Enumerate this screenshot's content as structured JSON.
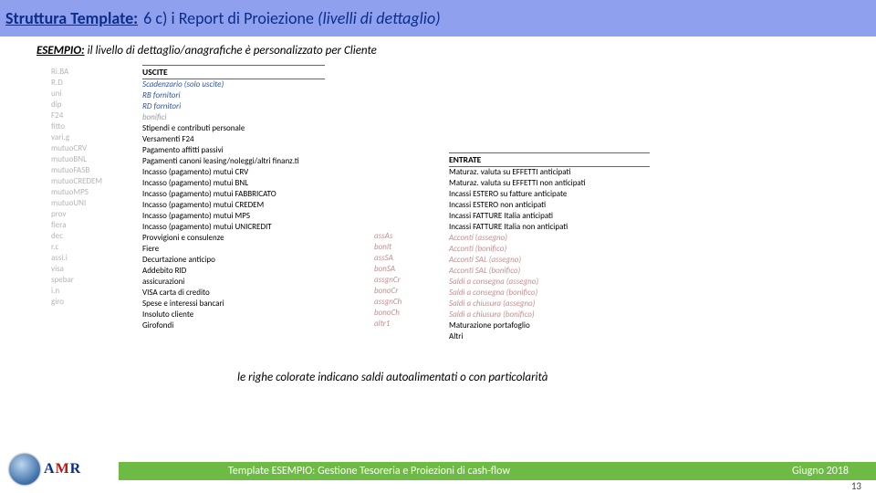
{
  "header": {
    "left": "Struttura Template:",
    "right_plain": " 6 c) i Report di Proiezione ",
    "right_italic": "(livelli di dettaglio)"
  },
  "subtitle": {
    "label": "ESEMPIO:",
    "text": " il livello di dettaglio/anagrafiche è personalizzato per Cliente"
  },
  "codes1": [
    "",
    "",
    "Ri.BA",
    "R.D",
    "uni",
    "dip",
    "F24",
    "fitto",
    "vari.g",
    "mutuoCRV",
    "mutuoBNL",
    "mutuoFASB",
    "mutuoCREDEM",
    "mutuoMPS",
    "mutuoUNI",
    "prov",
    "fiera",
    "dec",
    "r.c",
    "assi.i",
    "visa",
    "spebar",
    "i.n",
    "giro"
  ],
  "uscite": {
    "head": "USCITE",
    "rows": [
      {
        "t": "Scadenzario (solo uscite)",
        "c": "blue"
      },
      {
        "t": "RB fornitori",
        "c": "blue"
      },
      {
        "t": "RD fornitori",
        "c": "blue"
      },
      {
        "t": "bonifici",
        "c": "grey"
      },
      {
        "t": "Stipendi e contributi personale"
      },
      {
        "t": "Versamenti F24"
      },
      {
        "t": "Pagamento affitti passivi"
      },
      {
        "t": "Pagamenti canoni leasing/noleggi/altri finanz.ti"
      },
      {
        "t": "Incasso (pagamento) mutui CRV"
      },
      {
        "t": "Incasso (pagamento) mutui BNL"
      },
      {
        "t": "Incasso (pagamento) mutui FABBRICATO"
      },
      {
        "t": "Incasso (pagamento) mutui CREDEM"
      },
      {
        "t": "Incasso (pagamento) mutui MPS"
      },
      {
        "t": "Incasso (pagamento) mutui UNICREDIT"
      },
      {
        "t": "Provvigioni e consulenze"
      },
      {
        "t": "Fiere"
      },
      {
        "t": "Decurtazione anticipo"
      },
      {
        "t": "Addebito RID"
      },
      {
        "t": "assicurazioni"
      },
      {
        "t": "VISA carta di credito"
      },
      {
        "t": "Spese e interessi bancari"
      },
      {
        "t": "Insoluto cliente"
      },
      {
        "t": "Girofondi"
      }
    ]
  },
  "codes2": [
    "assAs",
    "bonIt",
    "assSA",
    "bonSA",
    "assgnCr",
    "bonoCr",
    "assgnCh",
    "bonoCh",
    "",
    "",
    "altr1"
  ],
  "entrate": {
    "head": "ENTRATE",
    "rows": [
      {
        "t": "Maturaz. valuta su EFFETTI anticipati"
      },
      {
        "t": "Maturaz. valuta su EFFETTI non anticipati"
      },
      {
        "t": "Incassi ESTERO su fatture anticipate"
      },
      {
        "t": "Incassi ESTERO non anticipati"
      },
      {
        "t": "Incassi FATTURE Italia anticipati"
      },
      {
        "t": "Incassi FATTURE Italia non anticipati"
      },
      {
        "t": "Acconti (assegno)",
        "c": "pink"
      },
      {
        "t": "Acconti (bonifico)",
        "c": "pink"
      },
      {
        "t": "Acconti SAL (assegno)",
        "c": "pink"
      },
      {
        "t": "Acconti SAL (bonifico)",
        "c": "pink"
      },
      {
        "t": "Saldi a consegna (assegno)",
        "c": "pink"
      },
      {
        "t": "Saldi a consegna (bonifico)",
        "c": "pink"
      },
      {
        "t": "Saldi a chiusura (assegno)",
        "c": "pink"
      },
      {
        "t": "Saldi a chiusura (bonifico)",
        "c": "pink"
      },
      {
        "t": "Maturazione portafoglio"
      },
      {
        "t": "Altri"
      }
    ]
  },
  "note": "le righe colorate indicano saldi autoalimentati o con particolarità",
  "footer": {
    "center": "Template ESEMPIO: Gestione Tesoreria e Proiezioni di cash-flow",
    "date": "Giugno 2018",
    "page": "13"
  },
  "logo": {
    "a": "A",
    "m": "M",
    "r": "R"
  }
}
